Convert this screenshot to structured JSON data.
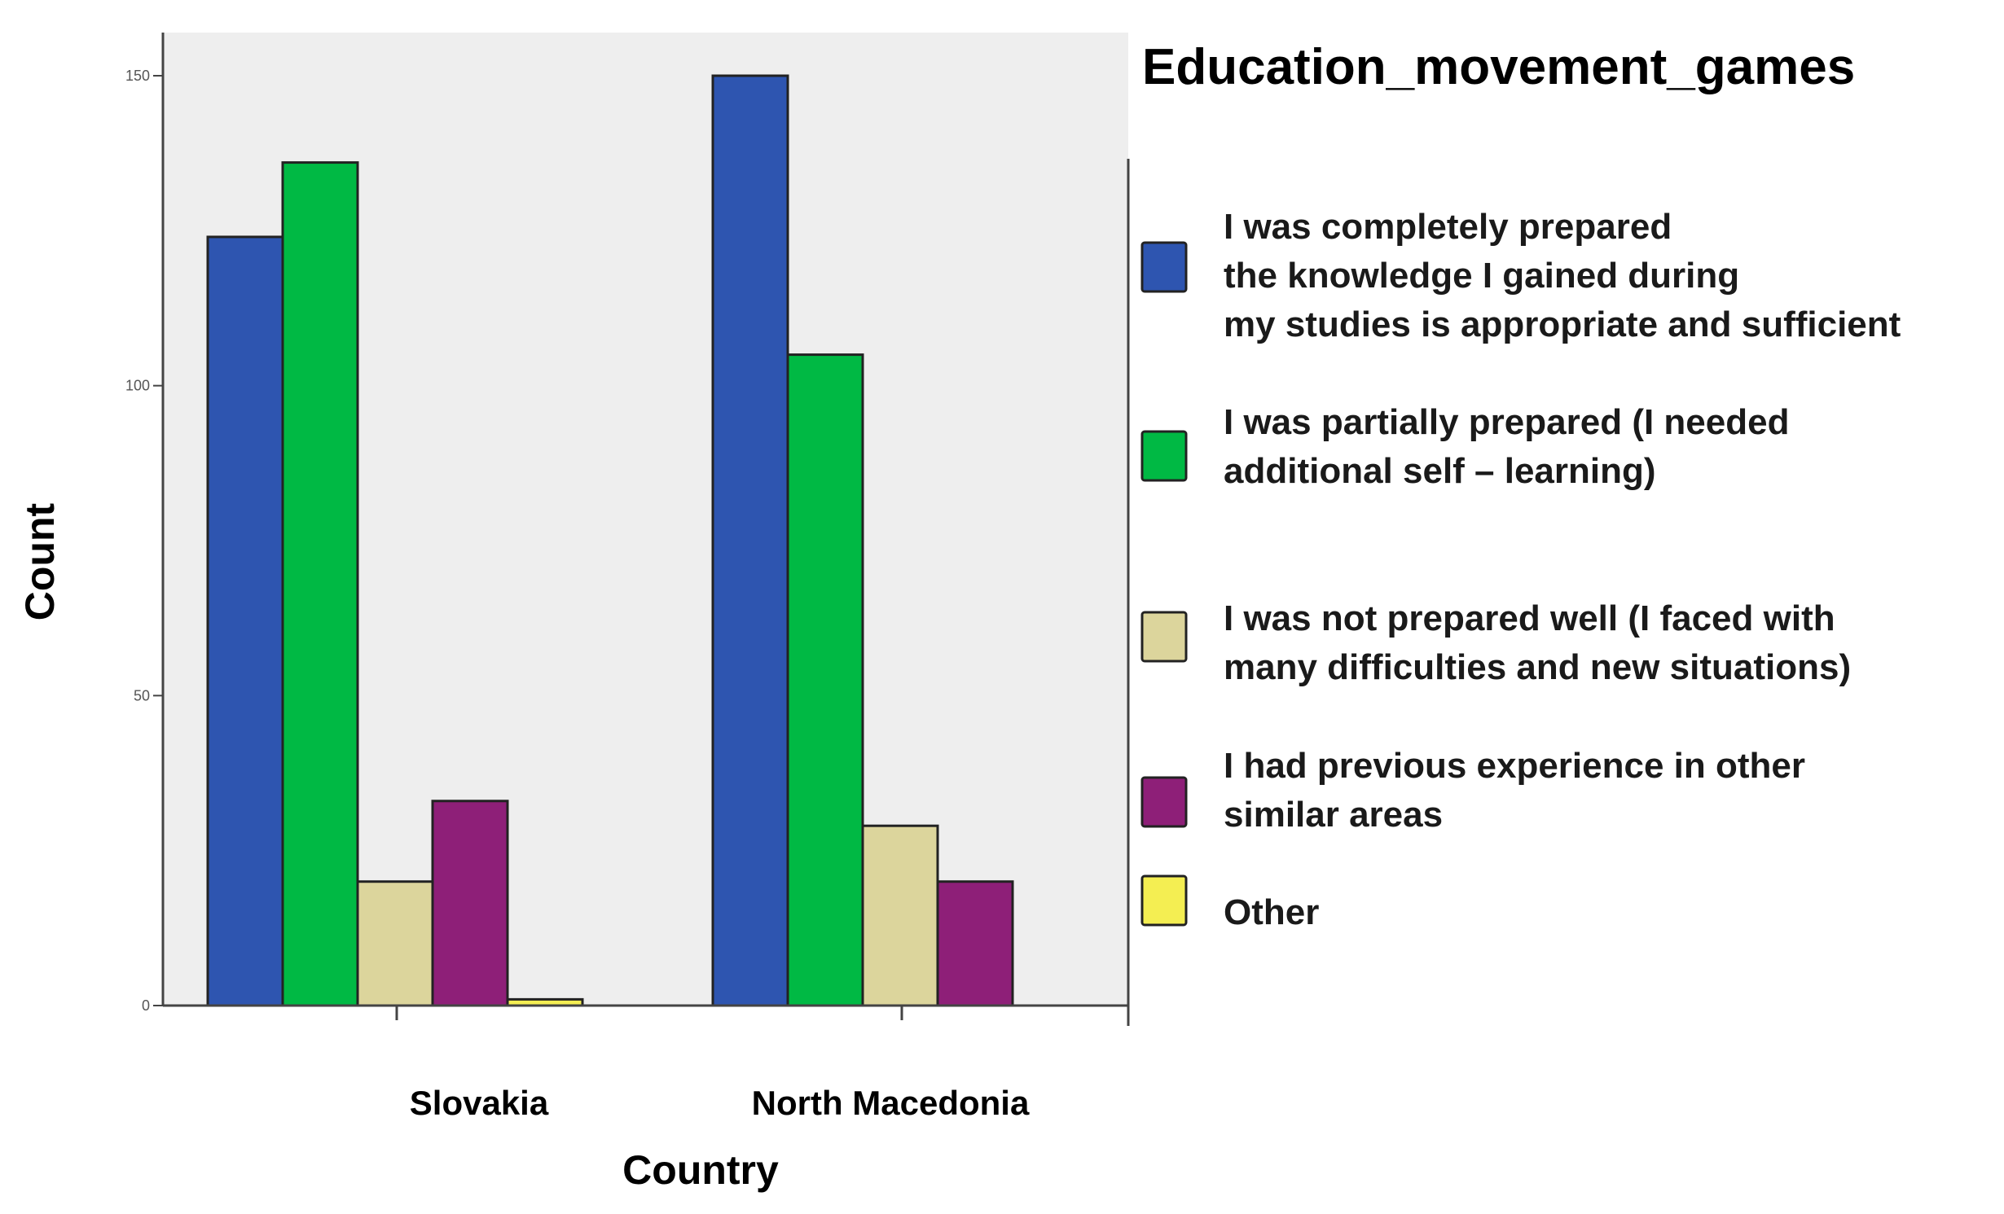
{
  "chart_data": {
    "type": "bar",
    "title": "",
    "xlabel": "Country",
    "ylabel": "Count",
    "categories": [
      "Slovakia",
      "North Macedonia"
    ],
    "ylim": [
      0,
      160
    ],
    "yticks": [
      0,
      50,
      100,
      150
    ],
    "grid": false,
    "legend": {
      "title": "Education_movement_games",
      "placement": "right"
    },
    "series": [
      {
        "name": "I was completely prepared the knowledge I gained during my studies is appropriate and sufficient",
        "legend_lines": [
          "I was completely prepared",
          "the knowledge I gained during",
          "my studies is appropriate and sufficient"
        ],
        "color": "#2e55b0",
        "values": [
          124,
          150
        ]
      },
      {
        "name": "I was partially prepared (I needed additional self – learning)",
        "legend_lines": [
          "I was partially prepared (I needed",
          "additional self – learning)"
        ],
        "color": "#00b944",
        "values": [
          136,
          105
        ]
      },
      {
        "name": "I was not prepared well (I faced with many difficulties and new situations)",
        "legend_lines": [
          "I was not prepared well (I faced with",
          "many difficulties and new situations)"
        ],
        "color": "#dcd59c",
        "values": [
          20,
          29
        ]
      },
      {
        "name": "I had previous experience in other similar areas",
        "legend_lines": [
          "I had previous experience in other",
          "similar areas"
        ],
        "color": "#8e1f78",
        "values": [
          33,
          20
        ]
      },
      {
        "name": "Other",
        "legend_lines": [
          "Other"
        ],
        "color": "#f4ee52",
        "values": [
          1,
          0
        ]
      }
    ],
    "colors": {
      "plot_background": "#eeeeee",
      "bar_outline": "#222222",
      "axis": "#444444"
    }
  }
}
